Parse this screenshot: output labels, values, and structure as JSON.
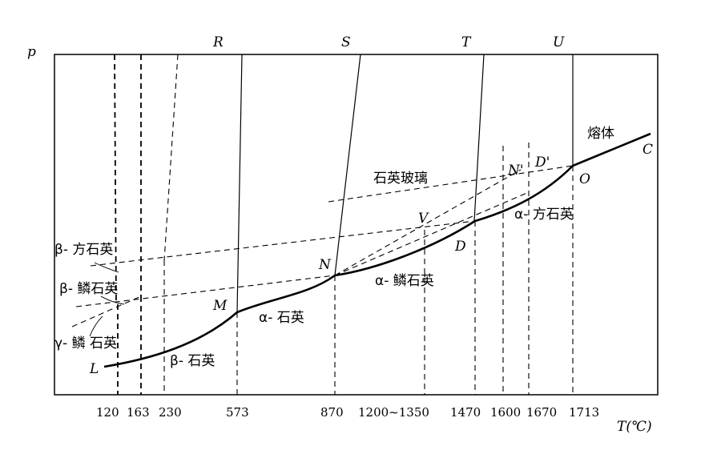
{
  "axes": {
    "y_label": "p",
    "x_label": "T(℃)",
    "x_ticks": [
      "120",
      "163",
      "230",
      "573",
      "870",
      "1200~1350",
      "1470",
      "1600",
      "1670",
      "1713"
    ]
  },
  "top_labels": [
    "R",
    "S",
    "T",
    "U"
  ],
  "points": {
    "L": "L",
    "M": "M",
    "N": "N",
    "V": "V",
    "D": "D",
    "N_prime": "N'",
    "D_prime": "D'",
    "O": "O",
    "C": "C"
  },
  "phases": {
    "melt": "熔体",
    "quartz_glass": "石英玻璃",
    "beta_cristobalite": "β- 方石英",
    "beta_tridymite": "β- 鳞石英",
    "gamma_tridymite": "γ- 鳞 石英",
    "beta_quartz": "β- 石英",
    "alpha_quartz": "α- 石英",
    "alpha_tridymite": "α- 鳞石英",
    "alpha_cristobalite": "α- 方石英"
  }
}
